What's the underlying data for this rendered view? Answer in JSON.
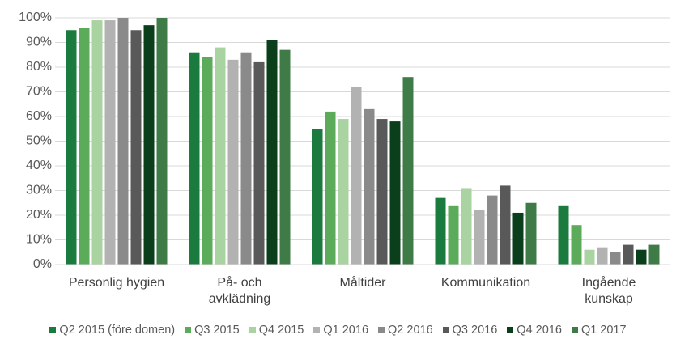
{
  "chart_data": {
    "type": "bar",
    "categories": [
      "Personlig hygien",
      "På- och\navklädning",
      "Måltider",
      "Kommunikation",
      "Ingående\nkunskap"
    ],
    "series": [
      {
        "name": "Q2 2015 (före domen)",
        "color": "#1b7a3e",
        "values": [
          95,
          86,
          55,
          27,
          24
        ]
      },
      {
        "name": "Q3 2015",
        "color": "#5bab5b",
        "values": [
          96,
          84,
          62,
          24,
          16
        ]
      },
      {
        "name": "Q4 2015",
        "color": "#a9d3a1",
        "values": [
          99,
          88,
          59,
          31,
          6
        ]
      },
      {
        "name": "Q1 2016",
        "color": "#b2b2b2",
        "values": [
          99,
          83,
          72,
          22,
          7
        ]
      },
      {
        "name": "Q2 2016",
        "color": "#8a8a8a",
        "values": [
          100,
          86,
          63,
          28,
          5
        ]
      },
      {
        "name": "Q3 2016",
        "color": "#595959",
        "values": [
          95,
          82,
          59,
          32,
          8
        ]
      },
      {
        "name": "Q4 2016",
        "color": "#0b3f1c",
        "values": [
          97,
          91,
          58,
          21,
          6
        ]
      },
      {
        "name": "Q1 2017",
        "color": "#3e7b46",
        "values": [
          100,
          87,
          76,
          25,
          8
        ]
      }
    ],
    "ylim": [
      0,
      100
    ],
    "yticks": [
      {
        "value": 0,
        "label": "0%"
      },
      {
        "value": 10,
        "label": "10%"
      },
      {
        "value": 20,
        "label": "20%"
      },
      {
        "value": 30,
        "label": "30%"
      },
      {
        "value": 40,
        "label": "40%"
      },
      {
        "value": 50,
        "label": "50%"
      },
      {
        "value": 60,
        "label": "60%"
      },
      {
        "value": 70,
        "label": "70%"
      },
      {
        "value": 80,
        "label": "80%"
      },
      {
        "value": 90,
        "label": "90%"
      },
      {
        "value": 100,
        "label": "100%"
      }
    ],
    "grid": true
  }
}
